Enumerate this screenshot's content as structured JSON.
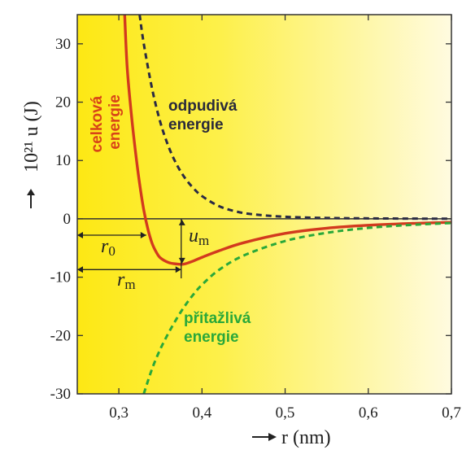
{
  "chart_data": {
    "type": "line",
    "xlabel": "r (nm)",
    "ylabel": "10²¹ u (J)",
    "xlim": [
      0.25,
      0.7
    ],
    "ylim": [
      -30,
      35
    ],
    "xticks": [
      0.3,
      0.4,
      0.5,
      0.6,
      0.7
    ],
    "xtick_labels": [
      "0,3",
      "0,4",
      "0,5",
      "0,6",
      "0,7"
    ],
    "yticks": [
      30,
      20,
      10,
      0,
      -10,
      -20,
      -30
    ],
    "ytick_labels": [
      "30",
      "20",
      "10",
      "0",
      "-10",
      "-20",
      "-30"
    ],
    "grid": false,
    "legend": "none",
    "background_gradient": [
      "#fde814",
      "#fffbe0"
    ],
    "series": [
      {
        "name": "celková energie",
        "color": "#d23a1e",
        "style": "solid",
        "x": [
          0.307,
          0.31,
          0.315,
          0.32,
          0.325,
          0.33,
          0.335,
          0.34,
          0.345,
          0.35,
          0.36,
          0.37,
          0.375,
          0.38,
          0.39,
          0.4,
          0.42,
          0.45,
          0.5,
          0.55,
          0.6,
          0.65,
          0.7
        ],
        "y": [
          35,
          26,
          18,
          11.5,
          6,
          1.5,
          -1.8,
          -4.2,
          -5.7,
          -6.7,
          -7.5,
          -7.75,
          -7.8,
          -7.7,
          -7.2,
          -6.6,
          -5.5,
          -4.1,
          -2.5,
          -1.6,
          -1.1,
          -0.8,
          -0.6
        ]
      },
      {
        "name": "odpudivá energie",
        "color": "#2a2a44",
        "style": "dashed",
        "x": [
          0.325,
          0.33,
          0.34,
          0.35,
          0.36,
          0.37,
          0.38,
          0.39,
          0.4,
          0.42,
          0.44,
          0.46,
          0.5,
          0.55,
          0.6,
          0.65,
          0.7
        ],
        "y": [
          35,
          30,
          22.3,
          16.5,
          12.3,
          9.2,
          6.9,
          5.2,
          3.9,
          2.2,
          1.3,
          0.8,
          0.35,
          0.15,
          0.08,
          0.04,
          0.02
        ]
      },
      {
        "name": "přitažlivá energie",
        "color": "#2aa83a",
        "style": "dashed",
        "x": [
          0.33,
          0.34,
          0.35,
          0.36,
          0.37,
          0.38,
          0.39,
          0.4,
          0.42,
          0.45,
          0.5,
          0.55,
          0.6,
          0.65,
          0.7
        ],
        "y": [
          -30,
          -25.7,
          -22.3,
          -19.5,
          -17,
          -14.8,
          -12.9,
          -11.3,
          -8.8,
          -6.3,
          -3.8,
          -2.4,
          -1.55,
          -1.05,
          -0.72
        ]
      }
    ],
    "annotations": {
      "total_line1": "celková",
      "total_line2": "energie",
      "repulsive_line1": "odpudivá",
      "repulsive_line2": "energie",
      "attractive_line1": "přitažlivá",
      "attractive_line2": "energie",
      "r0_main": "r",
      "r0_sub": "0",
      "rm_main": "r",
      "rm_sub": "m",
      "um_main": "u",
      "um_sub": "m",
      "r0": 0.333,
      "rm": 0.375,
      "um": -7.8
    }
  }
}
